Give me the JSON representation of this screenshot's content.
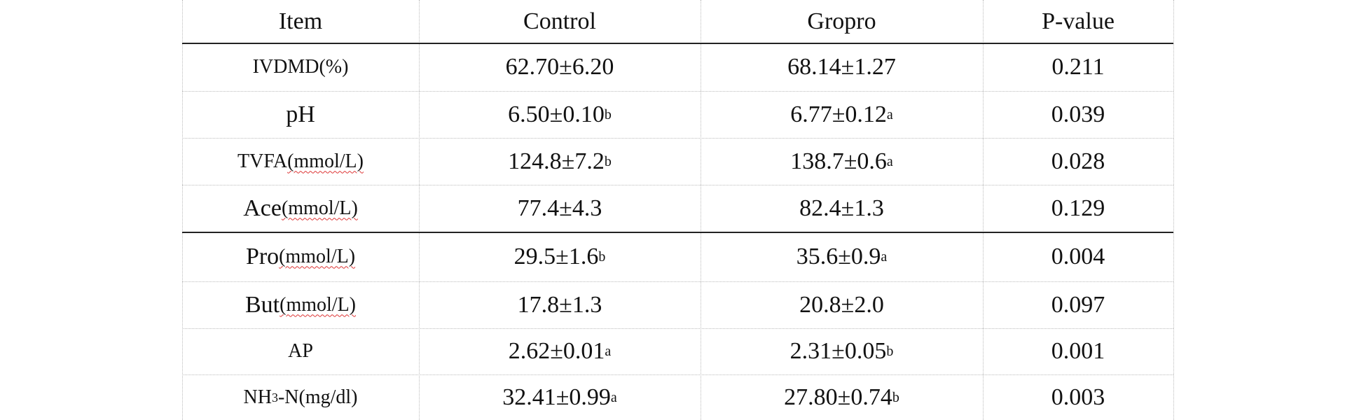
{
  "table": {
    "header": [
      "Item",
      "Control",
      "Gropro",
      "P-value"
    ],
    "rows": [
      [
        {
          "text": "IVDMD(%)",
          "small": true
        },
        "62.70±6.20",
        "68.14±1.27",
        "0.211"
      ],
      [
        "pH",
        {
          "text": "6.50±0.10",
          "sup": "b"
        },
        {
          "text": "6.77±0.12",
          "sup": "a"
        },
        "0.039"
      ],
      [
        {
          "text": "TVFA",
          "unit": "(mmol/L)",
          "small": true
        },
        {
          "text": "124.8±7.2",
          "sup": "b"
        },
        {
          "text": "138.7±0.6",
          "sup": "a"
        },
        "0.028"
      ],
      [
        {
          "text": "Ace",
          "unit": "(mmol/L)"
        },
        "77.4±4.3",
        "82.4±1.3",
        "0.129"
      ],
      [
        {
          "text": "Pro",
          "unit": "(mmol/L)"
        },
        {
          "text": "29.5±1.6",
          "sup": "b"
        },
        {
          "text": "35.6±0.9",
          "sup": "a"
        },
        "0.004"
      ],
      [
        {
          "text": "But",
          "unit": "(mmol/L)"
        },
        "17.8±1.3",
        "20.8±2.0",
        "0.097"
      ],
      [
        {
          "text": "AP",
          "small": true
        },
        {
          "text": "2.62±0.01",
          "sup": "a"
        },
        {
          "text": "2.31±0.05",
          "sup": "b"
        },
        "0.001"
      ],
      [
        {
          "text": "NH",
          "sub": "3",
          "after": "-N(mg/dl)",
          "small": true
        },
        {
          "text": "32.41±0.99",
          "sup": "a"
        },
        {
          "text": "27.80±0.74",
          "sup": "b"
        },
        "0.003"
      ]
    ]
  }
}
